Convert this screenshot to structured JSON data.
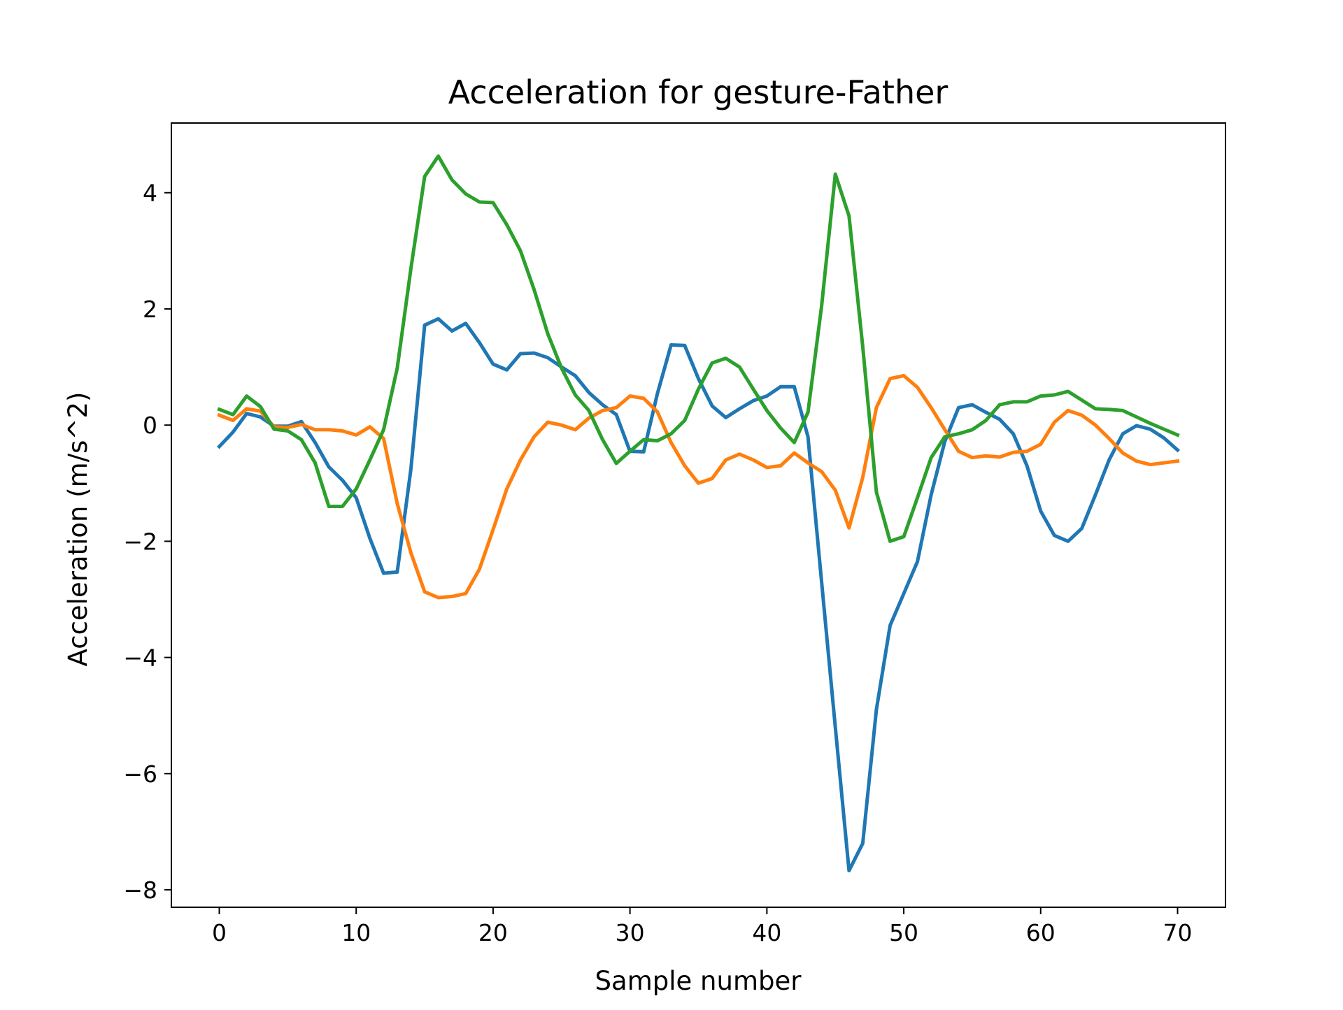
{
  "chart_data": {
    "type": "line",
    "title": "Acceleration for gesture-Father",
    "xlabel": "Sample number",
    "ylabel": "Acceleration (m/s^2)",
    "xlim": [
      -3.5,
      73.5
    ],
    "ylim": [
      -8.3,
      5.2
    ],
    "xticks": [
      0,
      10,
      20,
      30,
      40,
      50,
      60,
      70
    ],
    "yticks": [
      -8,
      -6,
      -4,
      -2,
      0,
      2,
      4
    ],
    "grid": false,
    "x": [
      0,
      1,
      2,
      3,
      4,
      5,
      6,
      7,
      8,
      9,
      10,
      11,
      12,
      13,
      14,
      15,
      16,
      17,
      18,
      19,
      20,
      21,
      22,
      23,
      24,
      25,
      26,
      27,
      28,
      29,
      30,
      31,
      32,
      33,
      34,
      35,
      36,
      37,
      38,
      39,
      40,
      41,
      42,
      43,
      44,
      45,
      46,
      47,
      48,
      49,
      50,
      51,
      52,
      53,
      54,
      55,
      56,
      57,
      58,
      59,
      60,
      61,
      62,
      63,
      64,
      65,
      66,
      67,
      68,
      69,
      70
    ],
    "series": [
      {
        "color": "#1f77b4",
        "values": [
          -0.37,
          -0.12,
          0.2,
          0.14,
          -0.02,
          -0.02,
          0.06,
          -0.3,
          -0.72,
          -0.95,
          -1.25,
          -1.95,
          -2.55,
          -2.53,
          -0.75,
          1.72,
          1.83,
          1.62,
          1.75,
          1.42,
          1.05,
          0.95,
          1.23,
          1.24,
          1.16,
          1.0,
          0.85,
          0.56,
          0.35,
          0.18,
          -0.45,
          -0.46,
          0.54,
          1.38,
          1.37,
          0.8,
          0.33,
          0.13,
          0.28,
          0.42,
          0.5,
          0.66,
          0.66,
          -0.2,
          -2.7,
          -5.2,
          -7.67,
          -7.2,
          -4.9,
          -3.45,
          -2.9,
          -2.35,
          -1.2,
          -0.28,
          0.3,
          0.35,
          0.22,
          0.1,
          -0.15,
          -0.7,
          -1.48,
          -1.9,
          -2.0,
          -1.78,
          -1.2,
          -0.6,
          -0.15,
          -0.01,
          -0.07,
          -0.22,
          -0.43
        ]
      },
      {
        "color": "#ff7f0e",
        "values": [
          0.17,
          0.08,
          0.28,
          0.24,
          -0.03,
          -0.04,
          0.01,
          -0.08,
          -0.08,
          -0.1,
          -0.17,
          -0.03,
          -0.23,
          -1.35,
          -2.2,
          -2.87,
          -2.97,
          -2.95,
          -2.9,
          -2.48,
          -1.8,
          -1.1,
          -0.6,
          -0.2,
          0.05,
          0.0,
          -0.08,
          0.12,
          0.25,
          0.3,
          0.5,
          0.46,
          0.23,
          -0.3,
          -0.7,
          -1.0,
          -0.92,
          -0.6,
          -0.5,
          -0.6,
          -0.73,
          -0.7,
          -0.48,
          -0.65,
          -0.8,
          -1.12,
          -1.77,
          -0.9,
          0.3,
          0.8,
          0.85,
          0.65,
          0.3,
          -0.08,
          -0.45,
          -0.56,
          -0.53,
          -0.55,
          -0.47,
          -0.45,
          -0.33,
          0.05,
          0.25,
          0.17,
          0.0,
          -0.23,
          -0.48,
          -0.62,
          -0.68,
          -0.65,
          -0.62
        ]
      },
      {
        "color": "#2ca02c",
        "values": [
          0.27,
          0.18,
          0.5,
          0.32,
          -0.07,
          -0.1,
          -0.25,
          -0.65,
          -1.4,
          -1.4,
          -1.1,
          -0.6,
          -0.08,
          0.98,
          2.7,
          4.28,
          4.63,
          4.22,
          3.98,
          3.84,
          3.83,
          3.45,
          3.0,
          2.33,
          1.57,
          0.98,
          0.52,
          0.25,
          -0.25,
          -0.66,
          -0.45,
          -0.25,
          -0.27,
          -0.15,
          0.08,
          0.62,
          1.07,
          1.15,
          1.0,
          0.62,
          0.25,
          -0.05,
          -0.3,
          0.22,
          2.05,
          4.32,
          3.6,
          1.35,
          -1.15,
          -2.0,
          -1.92,
          -1.25,
          -0.56,
          -0.2,
          -0.15,
          -0.08,
          0.08,
          0.35,
          0.4,
          0.4,
          0.5,
          0.52,
          0.58,
          0.43,
          0.28,
          0.27,
          0.25,
          0.14,
          0.03,
          -0.07,
          -0.17
        ]
      }
    ]
  }
}
